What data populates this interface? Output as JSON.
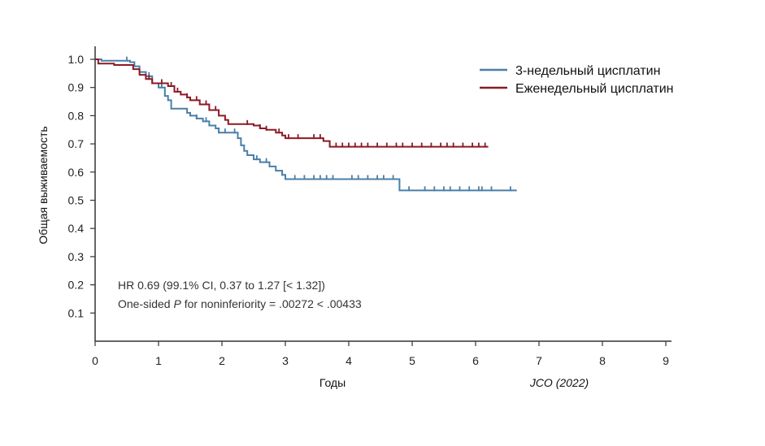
{
  "chart_data": {
    "type": "line",
    "subtype": "kaplan-meier-step",
    "xlabel": "Годы",
    "ylabel": "Общая выживаемость",
    "xlim": [
      0,
      9
    ],
    "ylim": [
      0,
      1.0
    ],
    "x_ticks": [
      "0",
      "1",
      "2",
      "3",
      "4",
      "5",
      "6",
      "7",
      "8",
      "9"
    ],
    "y_ticks": [
      "0.1",
      "0.2",
      "0.3",
      "0.4",
      "0.5",
      "0.6",
      "0.7",
      "0.8",
      "0.9",
      "1.0"
    ],
    "grid": false,
    "legend_position": "top-right",
    "annotations": {
      "line1": "HR 0.69 (99.1% CI, 0.37 to 1.27 [< 1.32])",
      "line2_prefix": "One-sided ",
      "line2_p": "P",
      "line2_suffix": " for noninferiority = .00272 < .00433"
    },
    "source": "JCO (2022)",
    "series": [
      {
        "name": "3-недельный цисплатин",
        "color": "#4a7fa8",
        "steps": [
          [
            0,
            1.0
          ],
          [
            0.1,
            0.995
          ],
          [
            0.55,
            0.99
          ],
          [
            0.62,
            0.975
          ],
          [
            0.7,
            0.955
          ],
          [
            0.8,
            0.94
          ],
          [
            0.9,
            0.915
          ],
          [
            1.0,
            0.9
          ],
          [
            1.1,
            0.87
          ],
          [
            1.15,
            0.855
          ],
          [
            1.2,
            0.84
          ],
          [
            1.2,
            0.825
          ],
          [
            1.45,
            0.81
          ],
          [
            1.5,
            0.8
          ],
          [
            1.6,
            0.79
          ],
          [
            1.7,
            0.78
          ],
          [
            1.8,
            0.765
          ],
          [
            1.9,
            0.755
          ],
          [
            1.95,
            0.74
          ],
          [
            2.2,
            0.74
          ],
          [
            2.25,
            0.72
          ],
          [
            2.3,
            0.695
          ],
          [
            2.35,
            0.675
          ],
          [
            2.4,
            0.66
          ],
          [
            2.5,
            0.645
          ],
          [
            2.6,
            0.635
          ],
          [
            2.75,
            0.62
          ],
          [
            2.85,
            0.605
          ],
          [
            2.95,
            0.59
          ],
          [
            3.0,
            0.575
          ],
          [
            4.75,
            0.575
          ],
          [
            4.8,
            0.535
          ],
          [
            6.65,
            0.535
          ]
        ],
        "censored": [
          0.5,
          0.85,
          1.05,
          1.6,
          1.75,
          1.95,
          2.05,
          2.2,
          2.55,
          2.7,
          2.95,
          3.15,
          3.3,
          3.45,
          3.55,
          3.65,
          3.75,
          4.05,
          4.15,
          4.3,
          4.45,
          4.55,
          4.7,
          4.95,
          5.2,
          5.35,
          5.5,
          5.6,
          5.75,
          5.9,
          6.05,
          6.1,
          6.25,
          6.55
        ]
      },
      {
        "name": "Еженедельный цисплатин",
        "color": "#8b1a24",
        "steps": [
          [
            0,
            1.0
          ],
          [
            0.05,
            0.985
          ],
          [
            0.3,
            0.98
          ],
          [
            0.6,
            0.965
          ],
          [
            0.7,
            0.945
          ],
          [
            0.8,
            0.93
          ],
          [
            0.9,
            0.915
          ],
          [
            1.15,
            0.905
          ],
          [
            1.25,
            0.885
          ],
          [
            1.35,
            0.875
          ],
          [
            1.45,
            0.865
          ],
          [
            1.5,
            0.855
          ],
          [
            1.65,
            0.84
          ],
          [
            1.8,
            0.82
          ],
          [
            1.95,
            0.8
          ],
          [
            2.05,
            0.785
          ],
          [
            2.1,
            0.77
          ],
          [
            2.5,
            0.765
          ],
          [
            2.6,
            0.755
          ],
          [
            2.7,
            0.75
          ],
          [
            2.85,
            0.74
          ],
          [
            2.95,
            0.73
          ],
          [
            3.0,
            0.72
          ],
          [
            3.6,
            0.71
          ],
          [
            3.7,
            0.69
          ],
          [
            6.2,
            0.69
          ]
        ],
        "censored": [
          0.85,
          1.05,
          1.2,
          1.3,
          1.45,
          1.6,
          1.75,
          1.9,
          2.4,
          2.6,
          2.7,
          2.9,
          3.05,
          3.2,
          3.45,
          3.55,
          3.8,
          3.9,
          4.0,
          4.1,
          4.2,
          4.3,
          4.45,
          4.6,
          4.75,
          4.85,
          5.0,
          5.15,
          5.3,
          5.45,
          5.55,
          5.65,
          5.8,
          5.95,
          6.05,
          6.15
        ]
      }
    ]
  }
}
